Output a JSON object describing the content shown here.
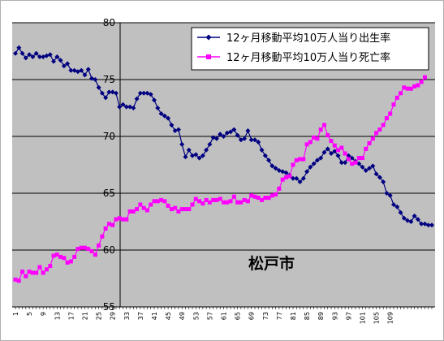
{
  "chart_data": {
    "type": "line",
    "title": "",
    "xlabel": "",
    "ylabel": "",
    "ylim": [
      55,
      80
    ],
    "yticks": [
      55,
      60,
      65,
      70,
      75,
      80
    ],
    "x_tick_labels": [
      "1",
      "5",
      "9",
      "13",
      "17",
      "21",
      "25",
      "29",
      "33",
      "37",
      "41",
      "45",
      "49",
      "53",
      "57",
      "61",
      "65",
      "69",
      "73",
      "77",
      "81",
      "85",
      "89",
      "93",
      "97",
      "101",
      "105",
      "109"
    ],
    "grid": "horizontal",
    "legend_position": "top-right",
    "annotation": "松戸市",
    "colors": {
      "plot_background": "#c0c0c0",
      "birth": "#000080",
      "death": "#ff00ff"
    },
    "series": [
      {
        "name": "12ヶ月移動平均10万人当り出生率",
        "color": "#000080",
        "marker": "diamond",
        "values": [
          77.3,
          77.8,
          77.3,
          76.9,
          77.2,
          77.0,
          77.3,
          77.0,
          77.0,
          77.1,
          77.2,
          76.6,
          77.0,
          76.7,
          76.2,
          76.4,
          75.8,
          75.8,
          75.7,
          75.8,
          75.4,
          75.9,
          75.1,
          75.0,
          74.3,
          73.8,
          73.4,
          73.9,
          73.9,
          73.8,
          72.6,
          72.8,
          72.6,
          72.6,
          72.5,
          73.3,
          73.8,
          73.8,
          73.8,
          73.7,
          73.2,
          72.5,
          72.0,
          71.8,
          71.6,
          71.0,
          70.5,
          70.6,
          69.3,
          68.2,
          68.8,
          68.3,
          68.4,
          68.1,
          68.3,
          68.8,
          69.3,
          69.9,
          69.8,
          70.2,
          70.0,
          70.3,
          70.4,
          70.6,
          70.1,
          69.7,
          69.8,
          70.5,
          69.7,
          69.7,
          69.5,
          68.8,
          68.3,
          67.9,
          67.4,
          67.2,
          67.0,
          66.9,
          66.8,
          66.6,
          66.3,
          66.3,
          66.0,
          66.3,
          66.9,
          67.3,
          67.6,
          67.9,
          68.1,
          68.6,
          68.9,
          68.5,
          68.7,
          68.3,
          67.7,
          67.7,
          68.3,
          68.1,
          67.8,
          67.6,
          67.3,
          67.0,
          67.2,
          67.4,
          66.7,
          66.4,
          66.0,
          65.0,
          64.8,
          64.0,
          63.8,
          63.3,
          62.8,
          62.6,
          62.5,
          63.0,
          62.7,
          62.3,
          62.3,
          62.2,
          62.2
        ]
      },
      {
        "name": "12ヶ月移動平均10万人当り死亡率",
        "color": "#ff00ff",
        "marker": "square",
        "values": [
          57.4,
          57.3,
          58.1,
          57.7,
          58.1,
          58.0,
          58.0,
          58.5,
          58.0,
          58.3,
          58.6,
          59.5,
          59.6,
          59.4,
          59.3,
          58.9,
          59.0,
          59.4,
          60.1,
          60.2,
          60.2,
          60.1,
          59.9,
          59.6,
          60.4,
          61.2,
          61.9,
          62.3,
          62.2,
          62.7,
          62.8,
          62.7,
          62.7,
          63.4,
          63.4,
          63.6,
          64.0,
          63.7,
          63.5,
          64.0,
          64.3,
          64.3,
          64.4,
          64.3,
          63.9,
          63.6,
          63.7,
          63.4,
          63.6,
          63.6,
          63.6,
          64.0,
          64.5,
          64.3,
          64.1,
          64.4,
          64.2,
          64.4,
          64.4,
          64.5,
          64.2,
          64.2,
          64.3,
          64.7,
          64.2,
          64.2,
          64.4,
          64.3,
          64.8,
          64.7,
          64.6,
          64.4,
          64.6,
          64.6,
          64.8,
          64.9,
          65.4,
          66.2,
          66.4,
          66.5,
          67.5,
          67.9,
          68.0,
          68.0,
          69.3,
          69.5,
          69.9,
          69.8,
          70.6,
          71.0,
          70.1,
          69.6,
          69.2,
          68.8,
          69.0,
          68.5,
          68.0,
          67.6,
          67.7,
          68.1,
          68.1,
          68.9,
          69.4,
          69.8,
          70.3,
          70.6,
          71.0,
          71.6,
          72.0,
          72.8,
          73.4,
          73.8,
          74.3,
          74.2,
          74.2,
          74.4,
          74.5,
          74.8,
          75.2
        ]
      }
    ]
  }
}
